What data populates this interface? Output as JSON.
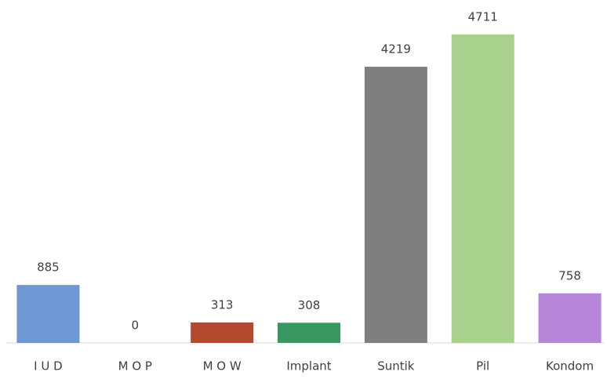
{
  "chart_data": {
    "type": "bar",
    "categories": [
      "I U D",
      "M O P",
      "M O W",
      "Implant",
      "Suntik",
      "Pil",
      "Kondom"
    ],
    "values": [
      885,
      0,
      313,
      308,
      4219,
      4711,
      758
    ],
    "colors": [
      "#6f97d4",
      "#ed7d31",
      "#b34a2f",
      "#3a9660",
      "#7f7f7f",
      "#a9d18e",
      "#b886d9"
    ],
    "ylim": [
      0,
      4711
    ]
  }
}
